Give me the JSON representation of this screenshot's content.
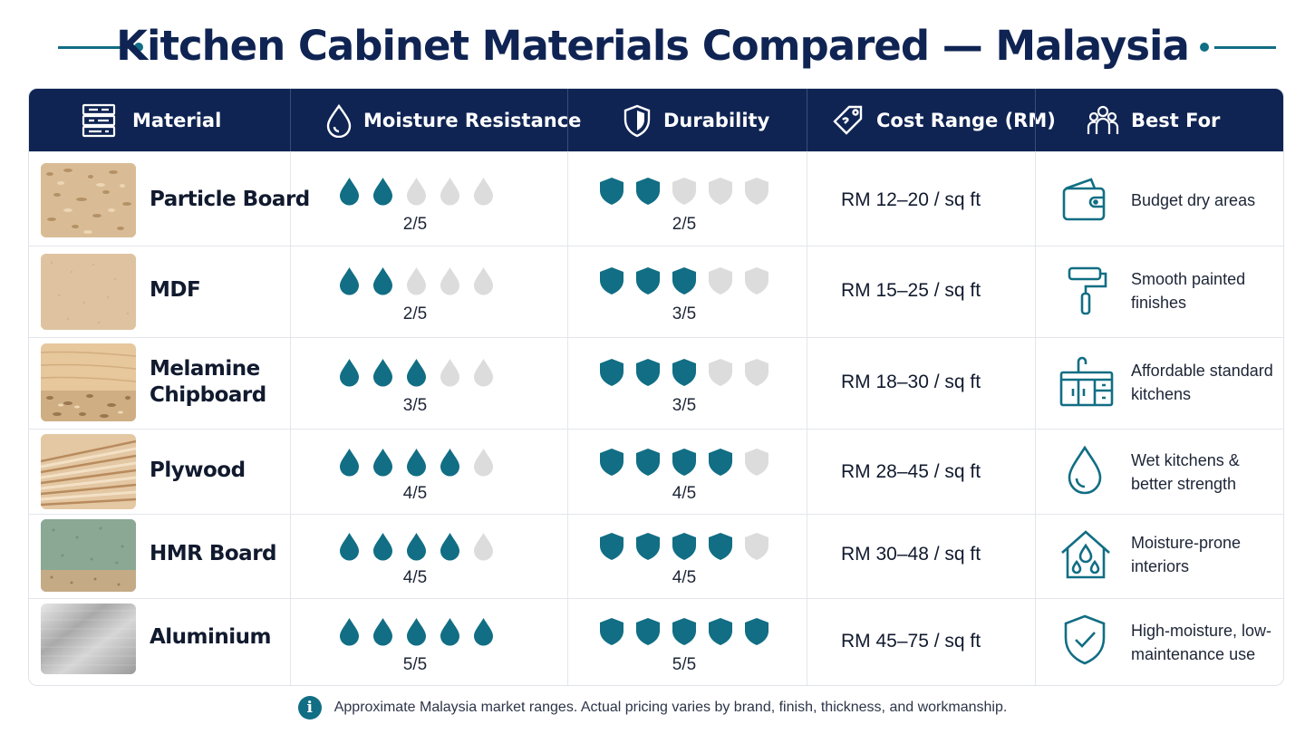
{
  "title": "Kitchen Cabinet Materials Compared — Malaysia",
  "headers": {
    "material": "Material",
    "moisture": "Moisture Resistance",
    "durability": "Durability",
    "cost": "Cost Range (RM)",
    "best_for": "Best For"
  },
  "rows": [
    {
      "material": "Particle Board",
      "moisture": 2,
      "moisture_label": "2/5",
      "durability": 2,
      "durability_label": "2/5",
      "cost": "RM 12–20 / sq ft",
      "best_for": "Budget dry areas",
      "best_icon": "wallet-icon",
      "texture": "particle-board-texture"
    },
    {
      "material": "MDF",
      "moisture": 2,
      "moisture_label": "2/5",
      "durability": 3,
      "durability_label": "3/5",
      "cost": "RM 15–25 / sq ft",
      "best_for": "Smooth painted finishes",
      "best_icon": "paint-roller-icon",
      "texture": "mdf-texture"
    },
    {
      "material": "Melamine Chipboard",
      "moisture": 3,
      "moisture_label": "3/5",
      "durability": 3,
      "durability_label": "3/5",
      "cost": "RM 18–30 / sq ft",
      "best_for": "Affordable standard kitchens",
      "best_icon": "kitchen-cabinet-icon",
      "texture": "melamine-chipboard-texture"
    },
    {
      "material": "Plywood",
      "moisture": 4,
      "moisture_label": "4/5",
      "durability": 4,
      "durability_label": "4/5",
      "cost": "RM 28–45 / sq ft",
      "best_for": "Wet kitchens & better strength",
      "best_icon": "water-drop-icon",
      "texture": "plywood-texture"
    },
    {
      "material": "HMR Board",
      "moisture": 4,
      "moisture_label": "4/5",
      "durability": 4,
      "durability_label": "4/5",
      "cost": "RM 30–48 / sq ft",
      "best_for": "Moisture-prone interiors",
      "best_icon": "house-drops-icon",
      "texture": "hmr-board-texture"
    },
    {
      "material": "Aluminium",
      "moisture": 5,
      "moisture_label": "5/5",
      "durability": 5,
      "durability_label": "5/5",
      "cost": "RM 45–75 / sq ft",
      "best_for": "High-moisture, low-maintenance use",
      "best_icon": "shield-check-icon",
      "texture": "aluminium-texture"
    }
  ],
  "footer_note": "Approximate Malaysia market ranges. Actual pricing varies by brand, finish, thickness, and workmanship.",
  "colors": {
    "navy": "#0f2453",
    "teal": "#116e84",
    "inactive": "#dcdcdc"
  }
}
